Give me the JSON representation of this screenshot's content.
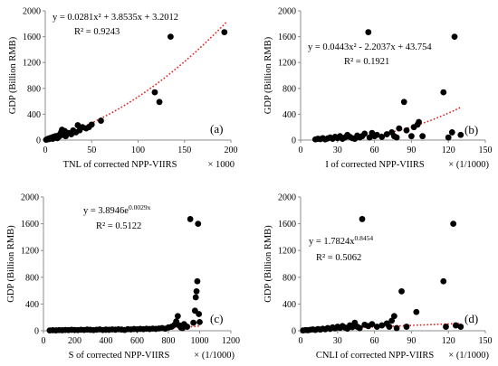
{
  "chart_data": [
    {
      "type": "scatter",
      "panel_label": "(a)",
      "xlabel": "TNL of corrected NPP-VIIRS",
      "x_unit": "× 1000",
      "ylabel": "GDP (Billion RMB)",
      "xlim": [
        0,
        200
      ],
      "ylim": [
        0,
        2000
      ],
      "xticks": [
        "0",
        "50",
        "100",
        "150",
        "200"
      ],
      "yticks": [
        "0",
        "400",
        "800",
        "1200",
        "1600",
        "2000"
      ],
      "equation": "y = 0.0281x² + 3.8535x + 3.2012",
      "r2": "R² = 0.9243",
      "trendline": {
        "kind": "poly2",
        "coefs": [
          0.0281,
          3.8535,
          3.2012
        ],
        "range": [
          0,
          195
        ]
      },
      "points": [
        [
          1,
          5
        ],
        [
          2,
          10
        ],
        [
          3,
          20
        ],
        [
          4,
          15
        ],
        [
          5,
          30
        ],
        [
          6,
          25
        ],
        [
          7,
          40
        ],
        [
          8,
          20
        ],
        [
          9,
          50
        ],
        [
          10,
          35
        ],
        [
          11,
          60
        ],
        [
          12,
          45
        ],
        [
          13,
          30
        ],
        [
          14,
          70
        ],
        [
          15,
          55
        ],
        [
          16,
          90
        ],
        [
          17,
          120
        ],
        [
          18,
          160
        ],
        [
          19,
          80
        ],
        [
          20,
          130
        ],
        [
          21,
          140
        ],
        [
          22,
          60
        ],
        [
          24,
          100
        ],
        [
          25,
          110
        ],
        [
          28,
          90
        ],
        [
          30,
          150
        ],
        [
          33,
          120
        ],
        [
          35,
          230
        ],
        [
          37,
          150
        ],
        [
          40,
          200
        ],
        [
          44,
          180
        ],
        [
          47,
          200
        ],
        [
          50,
          240
        ],
        [
          60,
          300
        ],
        [
          118,
          740
        ],
        [
          123,
          590
        ],
        [
          135,
          1600
        ],
        [
          193,
          1670
        ]
      ]
    },
    {
      "type": "scatter",
      "panel_label": "(b)",
      "xlabel": "I of corrected NPP-VIIRS",
      "x_unit": "× (1/1000)",
      "ylabel": "GDP (Billion RMB)",
      "xlim": [
        0,
        150
      ],
      "ylim": [
        0,
        2000
      ],
      "xticks": [
        "0",
        "30",
        "60",
        "90",
        "120",
        "150"
      ],
      "yticks": [
        "0",
        "400",
        "800",
        "1200",
        "1600",
        "2000"
      ],
      "equation": "y = 0.0443x² - 2.2037x + 43.754",
      "r2": "R² = 0.1921",
      "trendline": {
        "kind": "poly2",
        "coefs": [
          0.0443,
          -2.2037,
          43.754
        ],
        "range": [
          15,
          130
        ]
      },
      "points": [
        [
          12,
          10
        ],
        [
          14,
          20
        ],
        [
          16,
          15
        ],
        [
          18,
          30
        ],
        [
          20,
          10
        ],
        [
          22,
          25
        ],
        [
          24,
          40
        ],
        [
          26,
          20
        ],
        [
          28,
          50
        ],
        [
          30,
          30
        ],
        [
          32,
          60
        ],
        [
          34,
          20
        ],
        [
          36,
          40
        ],
        [
          38,
          80
        ],
        [
          40,
          50
        ],
        [
          42,
          30
        ],
        [
          44,
          20
        ],
        [
          46,
          70
        ],
        [
          48,
          40
        ],
        [
          50,
          60
        ],
        [
          52,
          100
        ],
        [
          55,
          1670
        ],
        [
          56,
          40
        ],
        [
          58,
          110
        ],
        [
          60,
          60
        ],
        [
          62,
          80
        ],
        [
          66,
          50
        ],
        [
          70,
          90
        ],
        [
          74,
          120
        ],
        [
          76,
          60
        ],
        [
          78,
          40
        ],
        [
          80,
          180
        ],
        [
          84,
          590
        ],
        [
          86,
          150
        ],
        [
          90,
          60
        ],
        [
          92,
          200
        ],
        [
          95,
          240
        ],
        [
          96,
          280
        ],
        [
          99,
          60
        ],
        [
          116,
          740
        ],
        [
          120,
          40
        ],
        [
          123,
          120
        ],
        [
          125,
          1600
        ],
        [
          130,
          80
        ]
      ]
    },
    {
      "type": "scatter",
      "panel_label": "(c)",
      "xlabel": "S of corrected NPP-VIIRS",
      "x_unit": "× (1/1000)",
      "ylabel": "GDP (Billion RMB)",
      "xlim": [
        0,
        1200
      ],
      "ylim": [
        0,
        2000
      ],
      "xticks": [
        "0",
        "200",
        "400",
        "600",
        "800",
        "1000",
        "1200"
      ],
      "yticks": [
        "0",
        "400",
        "800",
        "1200",
        "1600",
        "2000"
      ],
      "equation": "y = 3.8946e",
      "equation_exp": "0.0029x",
      "r2": "R² = 0.5122",
      "trendline": {
        "kind": "exp",
        "coefs": [
          3.8946,
          0.0029
        ],
        "range": [
          40,
          1000
        ]
      },
      "points": [
        [
          40,
          5
        ],
        [
          60,
          8
        ],
        [
          80,
          6
        ],
        [
          100,
          10
        ],
        [
          120,
          8
        ],
        [
          140,
          12
        ],
        [
          160,
          10
        ],
        [
          180,
          14
        ],
        [
          200,
          12
        ],
        [
          220,
          10
        ],
        [
          240,
          15
        ],
        [
          260,
          12
        ],
        [
          280,
          18
        ],
        [
          300,
          14
        ],
        [
          320,
          10
        ],
        [
          340,
          15
        ],
        [
          360,
          20
        ],
        [
          380,
          12
        ],
        [
          400,
          18
        ],
        [
          420,
          14
        ],
        [
          440,
          20
        ],
        [
          460,
          16
        ],
        [
          480,
          22
        ],
        [
          500,
          18
        ],
        [
          520,
          12
        ],
        [
          540,
          24
        ],
        [
          560,
          20
        ],
        [
          580,
          26
        ],
        [
          600,
          22
        ],
        [
          620,
          28
        ],
        [
          640,
          24
        ],
        [
          660,
          30
        ],
        [
          680,
          26
        ],
        [
          700,
          32
        ],
        [
          720,
          28
        ],
        [
          740,
          34
        ],
        [
          760,
          40
        ],
        [
          780,
          30
        ],
        [
          800,
          50
        ],
        [
          820,
          60
        ],
        [
          840,
          90
        ],
        [
          850,
          140
        ],
        [
          860,
          220
        ],
        [
          870,
          80
        ],
        [
          880,
          50
        ],
        [
          890,
          40
        ],
        [
          900,
          100
        ],
        [
          920,
          60
        ],
        [
          940,
          1670
        ],
        [
          960,
          120
        ],
        [
          970,
          300
        ],
        [
          975,
          500
        ],
        [
          980,
          590
        ],
        [
          985,
          740
        ],
        [
          990,
          1600
        ],
        [
          995,
          250
        ],
        [
          1000,
          130
        ]
      ]
    },
    {
      "type": "scatter",
      "panel_label": "(d)",
      "xlabel": "CNLI of corrected NPP-VIIRS",
      "x_unit": "× (1/1000)",
      "ylabel": "GDP (Billion RMB)",
      "xlim": [
        0,
        150
      ],
      "ylim": [
        0,
        2000
      ],
      "xticks": [
        "0",
        "30",
        "60",
        "90",
        "120",
        "150"
      ],
      "yticks": [
        "0",
        "400",
        "800",
        "1200",
        "1600",
        "2000"
      ],
      "equation": "y = 1.7824x",
      "equation_exp": "0.8454",
      "r2": "R² = 0.5062",
      "trendline": {
        "kind": "power",
        "coefs": [
          1.7824,
          0.8454
        ],
        "range": [
          2,
          130
        ]
      },
      "points": [
        [
          2,
          5
        ],
        [
          4,
          10
        ],
        [
          6,
          8
        ],
        [
          8,
          15
        ],
        [
          10,
          20
        ],
        [
          12,
          12
        ],
        [
          14,
          25
        ],
        [
          16,
          18
        ],
        [
          18,
          30
        ],
        [
          20,
          22
        ],
        [
          22,
          40
        ],
        [
          24,
          28
        ],
        [
          26,
          50
        ],
        [
          28,
          35
        ],
        [
          30,
          60
        ],
        [
          32,
          42
        ],
        [
          34,
          70
        ],
        [
          36,
          48
        ],
        [
          38,
          30
        ],
        [
          40,
          80
        ],
        [
          42,
          55
        ],
        [
          44,
          120
        ],
        [
          46,
          60
        ],
        [
          48,
          40
        ],
        [
          50,
          1670
        ],
        [
          52,
          90
        ],
        [
          55,
          70
        ],
        [
          58,
          100
        ],
        [
          62,
          60
        ],
        [
          66,
          80
        ],
        [
          70,
          110
        ],
        [
          72,
          60
        ],
        [
          74,
          150
        ],
        [
          76,
          220
        ],
        [
          78,
          40
        ],
        [
          82,
          590
        ],
        [
          86,
          60
        ],
        [
          94,
          280
        ],
        [
          116,
          740
        ],
        [
          118,
          60
        ],
        [
          124,
          1600
        ],
        [
          126,
          80
        ],
        [
          130,
          60
        ]
      ]
    }
  ]
}
